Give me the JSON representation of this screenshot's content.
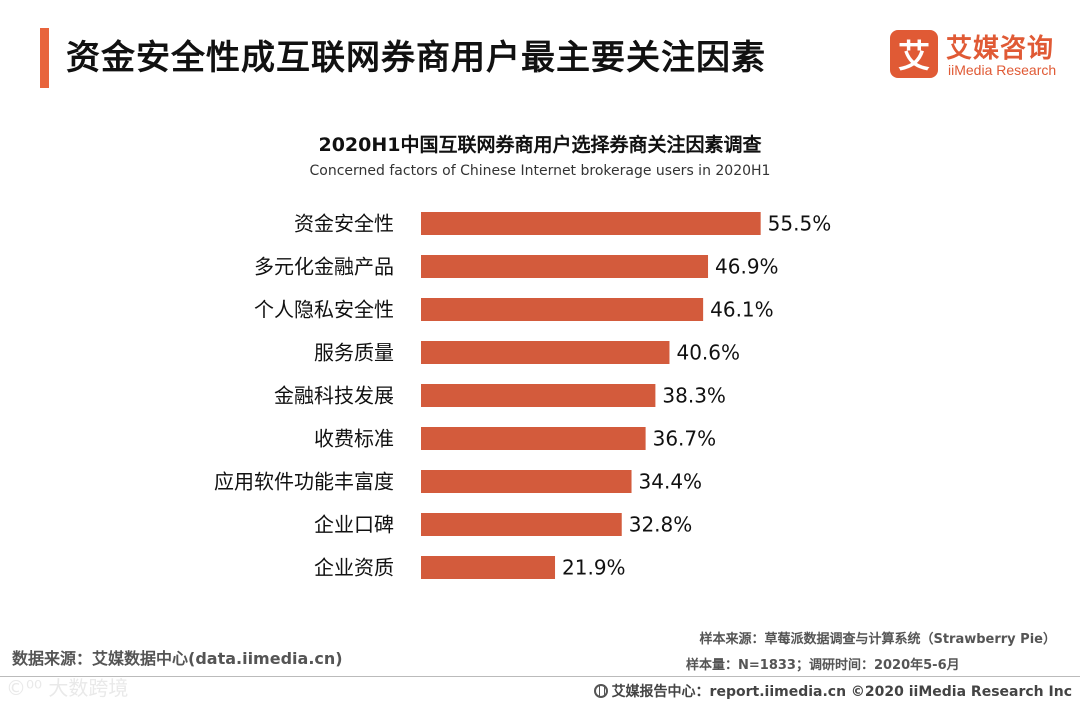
{
  "header": {
    "title": "资金安全性成互联网券商用户最主要关注因素"
  },
  "logo": {
    "mark": "艾",
    "name_cn": "艾媒咨询",
    "name_en": "iiMedia Research"
  },
  "chart_data": {
    "type": "bar",
    "orientation": "horizontal",
    "title": "2020H1中国互联网券商用户选择券商关注因素调查",
    "subtitle": "Concerned factors of Chinese Internet brokerage users in 2020H1",
    "categories": [
      "资金安全性",
      "多元化金融产品",
      "个人隐私安全性",
      "服务质量",
      "金融科技发展",
      "收费标准",
      "应用软件功能丰富度",
      "企业口碑",
      "企业资质"
    ],
    "values": [
      55.5,
      46.9,
      46.1,
      40.6,
      38.3,
      36.7,
      34.4,
      32.8,
      21.9
    ],
    "value_suffix": "%",
    "bar_color": "#d35b3c",
    "xlim": [
      0,
      60
    ],
    "grid": false,
    "legend": "none"
  },
  "footer": {
    "data_source": "数据来源：艾媒数据中心(data.iimedia.cn)",
    "sample_source": "样本来源：草莓派数据调查与计算系统（Strawberry Pie）",
    "sample_size": "样本量：N=1833；调研时间：2020年5-6月",
    "report_site": "艾媒报告中心：report.iimedia.cn  ©2020  iiMedia Research  Inc",
    "watermark": "©⁰⁰ 大数跨境"
  },
  "colors": {
    "accent": "#e8643c",
    "brand": "#e05a35"
  }
}
